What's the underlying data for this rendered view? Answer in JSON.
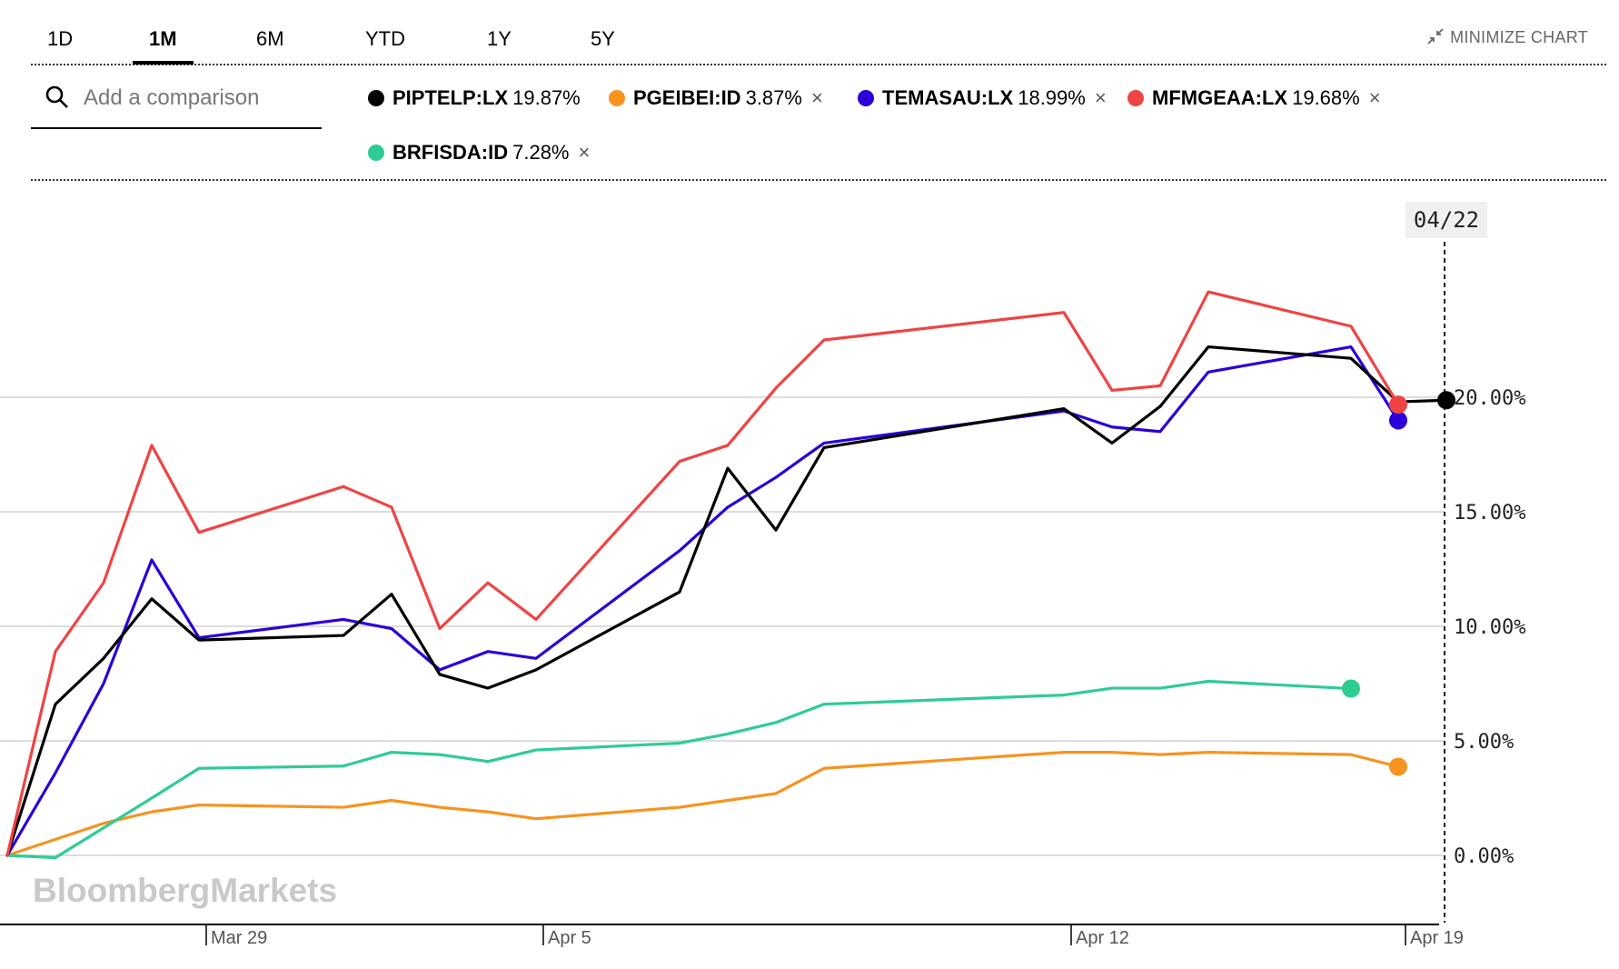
{
  "timeframes": [
    {
      "label": "1D",
      "active": false
    },
    {
      "label": "1M",
      "active": true
    },
    {
      "label": "6M",
      "active": false
    },
    {
      "label": "YTD",
      "active": false
    },
    {
      "label": "1Y",
      "active": false
    },
    {
      "label": "5Y",
      "active": false
    }
  ],
  "minimize": {
    "label": "MINIMIZE CHART",
    "icon": "minimize-arrows-icon"
  },
  "compare": {
    "placeholder": "Add a comparison",
    "icon": "search-icon"
  },
  "watermark": "BloombergMarkets",
  "legend": [
    {
      "symbol": "PIPTELP:LX",
      "change": "19.87%",
      "color": "#000000",
      "removable": false
    },
    {
      "symbol": "PGEIBEI:ID",
      "change": "3.87%",
      "color": "#f7931e",
      "removable": true,
      "remove_label": "×"
    },
    {
      "symbol": "TEMASAU:LX",
      "change": "18.99%",
      "color": "#2c00d8",
      "removable": true,
      "remove_label": "×"
    },
    {
      "symbol": "MFMGEAA:LX",
      "change": "19.68%",
      "color": "#ef4444",
      "removable": true,
      "remove_label": "×"
    },
    {
      "symbol": "BRFISDA:ID",
      "change": "7.28%",
      "color": "#2ecc93",
      "removable": true,
      "remove_label": "×"
    }
  ],
  "chart_data": {
    "type": "line",
    "title": "",
    "xlabel": "",
    "ylabel": "",
    "x_tick_labels": [
      "Mar 29",
      "Apr 5",
      "Apr 12",
      "Apr 19"
    ],
    "y_tick_labels": [
      "0.00%",
      "5.00%",
      "10.00%",
      "15.00%",
      "20.00%"
    ],
    "ylim": [
      -3,
      30
    ],
    "grid": true,
    "crosshair_label": "04/22",
    "x": [
      "2021-03-23",
      "2021-03-24",
      "2021-03-25",
      "2021-03-26",
      "2021-03-29",
      "2021-03-30",
      "2021-03-31",
      "2021-04-01",
      "2021-04-02",
      "2021-04-05",
      "2021-04-06",
      "2021-04-07",
      "2021-04-08",
      "2021-04-09",
      "2021-04-12",
      "2021-04-13",
      "2021-04-14",
      "2021-04-15",
      "2021-04-16",
      "2021-04-19",
      "2021-04-20",
      "2021-04-21",
      "2021-04-22"
    ],
    "series": [
      {
        "name": "PIPTELP:LX",
        "color": "#000000",
        "values": [
          0,
          6.6,
          8.6,
          11.2,
          9.4,
          9.6,
          11.4,
          7.9,
          7.3,
          8.1,
          11.5,
          16.9,
          14.2,
          17.8,
          19.5,
          18.0,
          19.6,
          22.2,
          21.7,
          19.8,
          null,
          null,
          19.87
        ]
      },
      {
        "name": "PGEIBEI:ID",
        "color": "#f7931e",
        "values": [
          0,
          0.7,
          1.4,
          1.9,
          2.2,
          2.1,
          2.4,
          2.1,
          1.9,
          1.6,
          2.1,
          2.4,
          2.7,
          3.8,
          4.5,
          4.5,
          4.4,
          4.5,
          4.4,
          3.87,
          null,
          null,
          null
        ]
      },
      {
        "name": "TEMASAU:LX",
        "color": "#2c00d8",
        "values": [
          0,
          3.6,
          7.5,
          12.9,
          9.5,
          10.3,
          9.9,
          8.1,
          8.9,
          8.6,
          13.3,
          15.2,
          16.5,
          18.0,
          19.4,
          18.7,
          18.5,
          21.1,
          22.2,
          18.99,
          null,
          null,
          null
        ]
      },
      {
        "name": "MFMGEAA:LX",
        "color": "#ef4444",
        "values": [
          0,
          8.9,
          11.9,
          17.9,
          14.1,
          16.1,
          15.2,
          9.9,
          11.9,
          10.3,
          17.2,
          17.9,
          20.4,
          22.5,
          23.7,
          20.3,
          20.5,
          24.6,
          23.1,
          19.68,
          null,
          null,
          null
        ]
      },
      {
        "name": "BRFISDA:ID",
        "color": "#2ecc93",
        "values": [
          0,
          -0.1,
          1.2,
          2.5,
          3.8,
          3.9,
          4.5,
          4.4,
          4.1,
          4.6,
          4.9,
          5.3,
          5.8,
          6.6,
          7.0,
          7.3,
          7.3,
          7.6,
          7.28,
          null,
          null,
          null,
          null
        ]
      }
    ]
  }
}
